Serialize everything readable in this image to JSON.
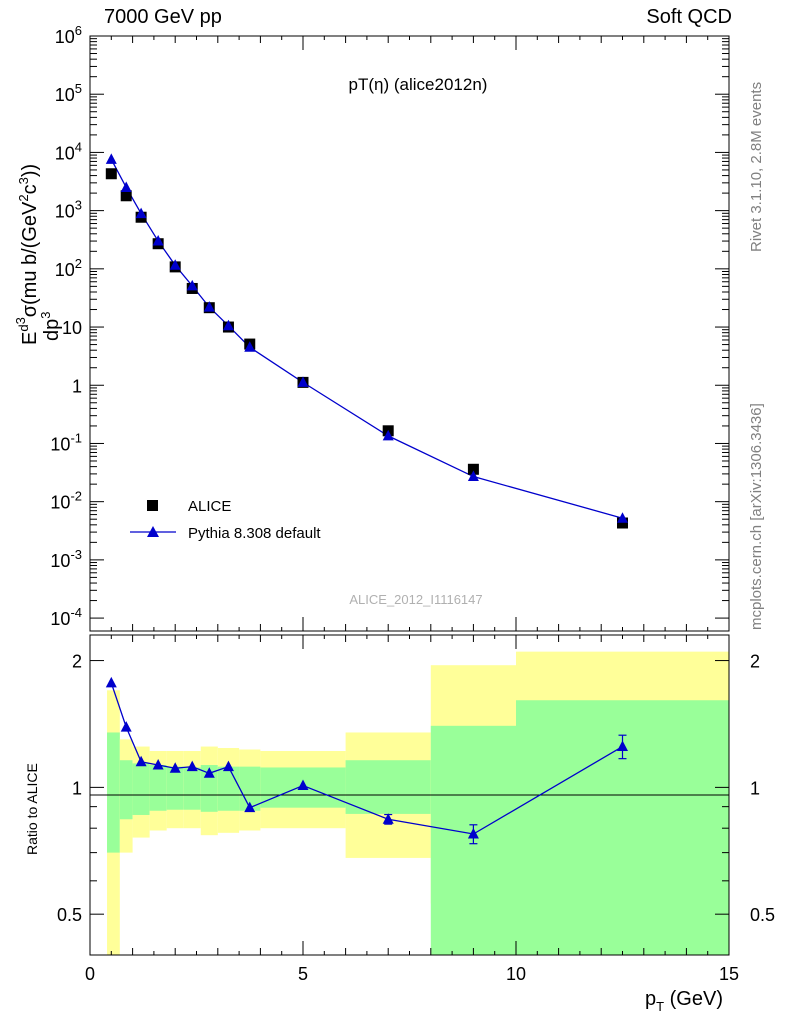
{
  "header": {
    "left": "7000 GeV pp",
    "right": "Soft QCD"
  },
  "side_labels": {
    "version": "Rivet 3.1.10,  2.8M events",
    "url": "mcplots.cern.ch [arXiv:1306.3436]"
  },
  "top_panel": {
    "title": "pT(η) (alice2012n)",
    "ylabel": "E d³σ / dp³ (mu b/(GeV²c³))",
    "watermark": "ALICE_2012_I1116147",
    "legend": [
      {
        "label": "ALICE",
        "marker": "square"
      },
      {
        "label": "Pythia 8.308 default",
        "marker": "triangle"
      }
    ],
    "y_ticks": [
      "10-4",
      "10-3",
      "10-2",
      "10-1",
      "1",
      "10",
      "102",
      "103",
      "104",
      "105",
      "106"
    ]
  },
  "bottom_panel": {
    "ylabel": "Ratio to ALICE",
    "xlabel": "pT (GeV)",
    "y_ticks": [
      "0.5",
      "1",
      "2"
    ],
    "x_ticks": [
      "0",
      "5",
      "10",
      "15"
    ]
  },
  "colors": {
    "data": "#000000",
    "mc": "#0000cc",
    "band_inner": "#99ff99",
    "band_outer": "#ffff99"
  },
  "chart_data": [
    {
      "type": "scatter",
      "yscale": "log",
      "xlim": [
        0,
        15
      ],
      "ylim": [
        6e-05,
        1000000
      ],
      "series": [
        {
          "name": "ALICE",
          "x": [
            0.5,
            0.85,
            1.2,
            1.6,
            2.0,
            2.4,
            2.8,
            3.25,
            3.75,
            5.0,
            7.0,
            9.0,
            12.5
          ],
          "y": [
            4300,
            1800,
            770,
            270,
            108,
            46,
            21.5,
            10,
            5.1,
            1.12,
            0.165,
            0.036,
            0.0043
          ]
        },
        {
          "name": "Pythia 8.308 default",
          "x": [
            0.5,
            0.85,
            1.2,
            1.6,
            2.0,
            2.4,
            2.8,
            3.25,
            3.75,
            5.0,
            7.0,
            9.0,
            12.5
          ],
          "y": [
            7600,
            2500,
            890,
            300,
            115,
            51,
            22,
            10.5,
            4.5,
            1.12,
            0.135,
            0.027,
            0.0052
          ]
        }
      ]
    },
    {
      "type": "scatter",
      "yscale": "log",
      "xlim": [
        0,
        15
      ],
      "ylim": [
        0.4,
        2.3
      ],
      "series": [
        {
          "name": "Pythia 8.308 default",
          "x": [
            0.5,
            0.85,
            1.2,
            1.6,
            2.0,
            2.4,
            2.8,
            3.25,
            3.75,
            5.0,
            7.0,
            9.0,
            12.5
          ],
          "y": [
            1.77,
            1.39,
            1.15,
            1.13,
            1.11,
            1.12,
            1.08,
            1.12,
            0.895,
            1.01,
            0.84,
            0.775,
            1.25
          ],
          "yerr": [
            0,
            0,
            0,
            0,
            0,
            0,
            0,
            0,
            0,
            0,
            0.022,
            0.04,
            0.08
          ]
        }
      ],
      "bands": {
        "edges": [
          0.4,
          0.7,
          1.0,
          1.4,
          1.8,
          2.2,
          2.6,
          3.0,
          3.5,
          4.0,
          6.0,
          8.0,
          10.0,
          15.0
        ],
        "inner_lo": [
          0.7,
          0.84,
          0.86,
          0.88,
          0.885,
          0.885,
          0.875,
          0.88,
          0.88,
          0.895,
          0.865,
          0.39,
          0.39
        ],
        "inner_hi": [
          1.35,
          1.16,
          1.14,
          1.13,
          1.12,
          1.115,
          1.13,
          1.12,
          1.12,
          1.115,
          1.16,
          1.4,
          1.61
        ],
        "outer_lo": [
          0.4,
          0.7,
          0.76,
          0.79,
          0.8,
          0.8,
          0.77,
          0.78,
          0.79,
          0.8,
          0.68,
          0.53,
          0.4
        ],
        "outer_hi": [
          1.7,
          1.3,
          1.25,
          1.22,
          1.22,
          1.22,
          1.25,
          1.24,
          1.23,
          1.22,
          1.35,
          1.95,
          2.1
        ]
      }
    }
  ]
}
